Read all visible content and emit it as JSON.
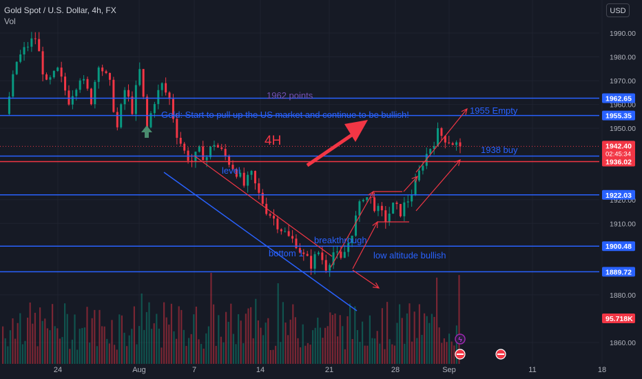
{
  "header": {
    "title": "Gold Spot / U.S. Dollar, 4h, FX",
    "indicator": "Vol",
    "currency_button": "USD"
  },
  "chart_data": {
    "type": "candlestick",
    "symbol": "Gold Spot / U.S. Dollar",
    "timeframe": "4h",
    "y_axis": {
      "ticks": [
        "1990.00",
        "1980.00",
        "1970.00",
        "1960.00",
        "1950.00",
        "1920.00",
        "1910.00",
        "1880.00",
        "1860.00"
      ],
      "ylim": [
        1855,
        1996
      ]
    },
    "x_axis": {
      "ticks": [
        "24",
        "Aug",
        "7",
        "14",
        "21",
        "28",
        "Sep",
        "11",
        "18"
      ]
    },
    "price_path": [
      [
        0,
        1956
      ],
      [
        3,
        1978
      ],
      [
        6,
        1985
      ],
      [
        8,
        1988
      ],
      [
        11,
        1968
      ],
      [
        14,
        1974
      ],
      [
        17,
        1962
      ],
      [
        20,
        1972
      ],
      [
        23,
        1962
      ],
      [
        25,
        1978
      ],
      [
        28,
        1968
      ],
      [
        30,
        1950
      ],
      [
        32,
        1966
      ],
      [
        34,
        1958
      ],
      [
        36,
        1974
      ],
      [
        38,
        1950
      ],
      [
        40,
        1962
      ],
      [
        42,
        1968
      ],
      [
        44,
        1962
      ],
      [
        46,
        1948
      ],
      [
        48,
        1940
      ],
      [
        50,
        1936
      ],
      [
        52,
        1940
      ],
      [
        54,
        1938
      ],
      [
        56,
        1944
      ],
      [
        58,
        1940
      ],
      [
        60,
        1936
      ],
      [
        62,
        1932
      ],
      [
        64,
        1926
      ],
      [
        66,
        1930
      ],
      [
        68,
        1922
      ],
      [
        70,
        1916
      ],
      [
        72,
        1912
      ],
      [
        74,
        1908
      ],
      [
        76,
        1904
      ],
      [
        78,
        1902
      ],
      [
        80,
        1896
      ],
      [
        82,
        1893
      ],
      [
        84,
        1898
      ],
      [
        86,
        1892
      ],
      [
        88,
        1898
      ],
      [
        90,
        1894
      ],
      [
        92,
        1902
      ],
      [
        94,
        1912
      ],
      [
        96,
        1922
      ],
      [
        98,
        1920
      ],
      [
        100,
        1915
      ],
      [
        102,
        1912
      ],
      [
        104,
        1917
      ],
      [
        106,
        1915
      ],
      [
        108,
        1920
      ],
      [
        110,
        1926
      ],
      [
        112,
        1936
      ],
      [
        114,
        1942
      ],
      [
        116,
        1948
      ],
      [
        118,
        1946
      ],
      [
        120,
        1944
      ],
      [
        122,
        1942.4
      ]
    ],
    "volume": {
      "last_label": "95.718K"
    },
    "horizontal_levels": [
      {
        "price": 1962.65,
        "label": "1962.65",
        "color": "#2962ff"
      },
      {
        "price": 1955.35,
        "label": "1955.35",
        "color": "#2962ff"
      },
      {
        "price": 1938.31,
        "label": "1938.31",
        "color": "#2962ff"
      },
      {
        "price": 1936.02,
        "label": "1936.02",
        "color": "#f23645"
      },
      {
        "price": 1922.03,
        "label": "1922.03",
        "color": "#2962ff"
      },
      {
        "price": 1900.48,
        "label": "1900.48",
        "color": "#2962ff"
      },
      {
        "price": 1889.72,
        "label": "1889.72",
        "color": "#2962ff"
      }
    ],
    "last_price": {
      "price": 1942.4,
      "label": "1942.40",
      "countdown": "02:45:34",
      "color": "#f23645"
    },
    "annotations": [
      {
        "text": "1962 points",
        "color": "#7e57c2"
      },
      {
        "text": "Gold: Start to pull up the US market and continue to be bullish!",
        "color": "#2962ff"
      },
      {
        "text": "1955 Empty",
        "color": "#2962ff"
      },
      {
        "text": "4H",
        "color": "#f23645"
      },
      {
        "text": "1938 buy",
        "color": "#2962ff"
      },
      {
        "text": "level",
        "color": "#2962ff"
      },
      {
        "text": "breakthrough",
        "color": "#2962ff"
      },
      {
        "text": "bottom 1",
        "color": "#2962ff"
      },
      {
        "text": "low altitude bullish",
        "color": "#2962ff"
      }
    ],
    "colors": {
      "up": "#089981",
      "down": "#f23645",
      "bg": "#161a25",
      "grid": "#1f2330",
      "axis_text": "#b2b5be",
      "level": "#2962ff",
      "drawing": "#f23645"
    }
  }
}
